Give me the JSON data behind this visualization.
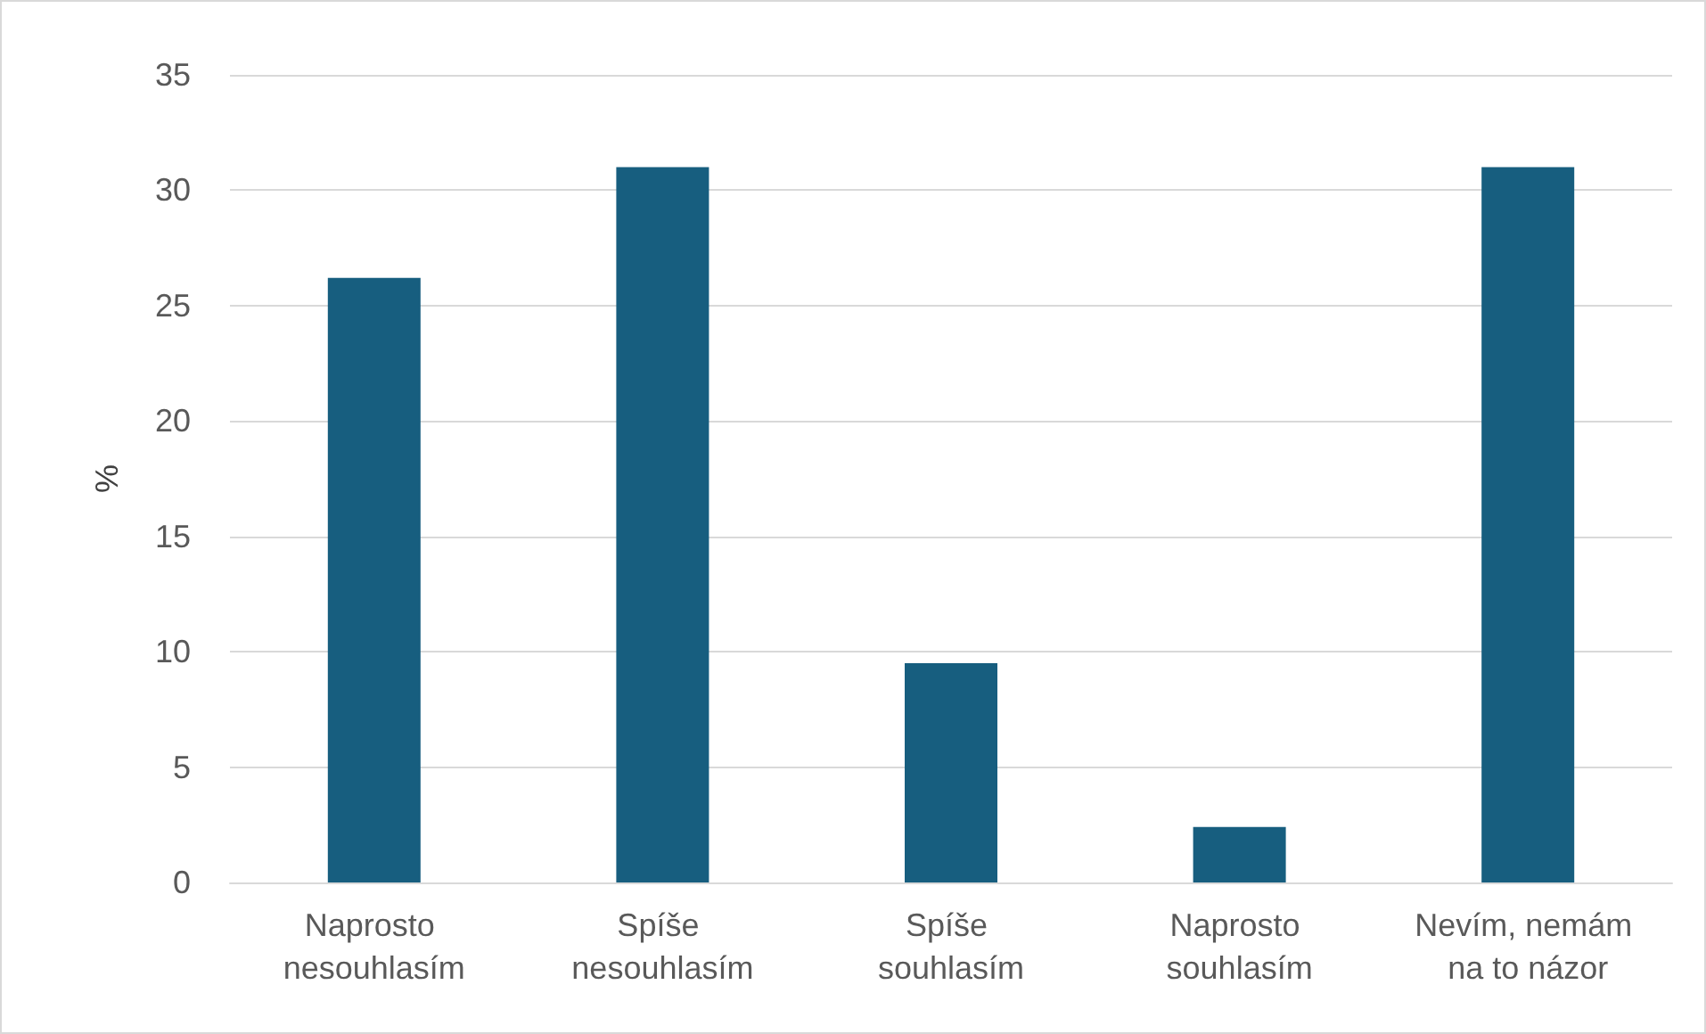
{
  "chart_data": {
    "type": "bar",
    "ylabel": "%",
    "categories": [
      "Naprosto nesouhlasím",
      "Spíše nesouhlasím",
      "Spíše souhlasím",
      "Naprosto souhlasím",
      "Nevím, nemám na to názor"
    ],
    "values": [
      26.2,
      31.0,
      9.5,
      2.4,
      31.0
    ],
    "color": "#175e7f",
    "ylim": [
      0,
      35
    ],
    "yticks": [
      0,
      5,
      10,
      15,
      20,
      25,
      30,
      35
    ],
    "grid": "y"
  }
}
